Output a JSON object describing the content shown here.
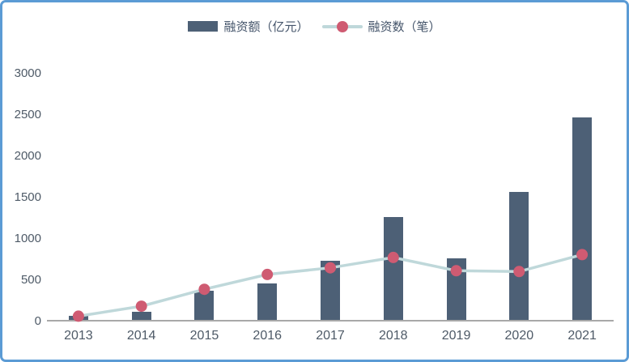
{
  "window": {
    "border_color": "#5B9BD5",
    "background": "#FFFFFF"
  },
  "legend": {
    "bar_label": "融资额（亿元）",
    "line_label": "融资数（笔）"
  },
  "colors": {
    "bar": "#4D6076",
    "line": "#BFD8DA",
    "marker": "#CF5B72",
    "axis_line": "#A8A8A8",
    "axis_text": "#4E5A67"
  },
  "chart_data": {
    "type": "bar",
    "categories": [
      "2013",
      "2014",
      "2015",
      "2016",
      "2017",
      "2018",
      "2019",
      "2020",
      "2021"
    ],
    "series": [
      {
        "name": "融资额（亿元）",
        "type": "bar",
        "color": "#4D6076",
        "values": [
          50,
          100,
          350,
          440,
          720,
          1250,
          750,
          1550,
          2450
        ]
      },
      {
        "name": "融资数（笔）",
        "type": "line",
        "color": "#BFD8DA",
        "marker_color": "#CF5B72",
        "values": [
          65,
          185,
          390,
          570,
          650,
          775,
          615,
          605,
          810
        ]
      }
    ],
    "title": "",
    "xlabel": "",
    "ylabel": "",
    "ylim": [
      0,
      3000
    ],
    "yticks": [
      0,
      500,
      1000,
      1500,
      2000,
      2500,
      3000
    ],
    "grid": false,
    "legend_position": "top"
  }
}
